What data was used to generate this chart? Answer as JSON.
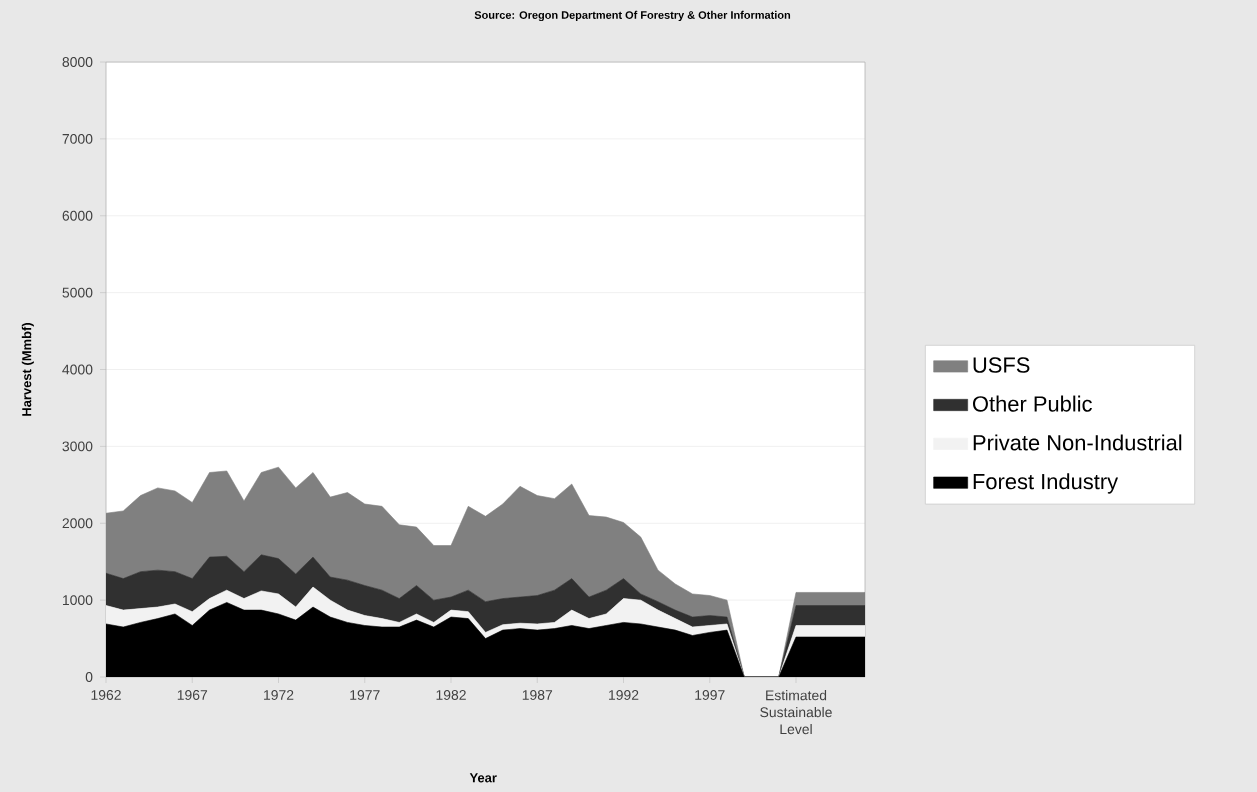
{
  "chart_data": {
    "type": "area",
    "stacked": true,
    "title": "Source: Oregon Department Of Forestry & Other Information",
    "xlabel": "Year",
    "ylabel": "Harvest (Mmbf)",
    "categories": [
      "1962",
      null,
      null,
      null,
      null,
      "1967",
      null,
      null,
      null,
      null,
      "1972",
      null,
      null,
      null,
      null,
      "1977",
      null,
      null,
      null,
      null,
      "1982",
      null,
      null,
      null,
      null,
      "1987",
      null,
      null,
      null,
      null,
      "1992",
      null,
      null,
      null,
      null,
      "1997",
      null,
      null,
      null,
      null,
      "Estimated Sustainable Level",
      null,
      null,
      null,
      null
    ],
    "series": [
      {
        "name": "Forest Industry",
        "color": "#000000",
        "values": [
          690,
          650,
          710,
          760,
          820,
          670,
          870,
          970,
          870,
          870,
          820,
          740,
          910,
          780,
          710,
          670,
          650,
          650,
          740,
          650,
          780,
          760,
          500,
          610,
          630,
          610,
          630,
          670,
          630,
          670,
          710,
          690,
          650,
          610,
          540,
          580,
          610,
          0,
          0,
          0,
          520,
          520,
          520,
          520,
          520
        ]
      },
      {
        "name": "Private Non-Industrial",
        "color": "#f2f2f2",
        "values": [
          240,
          220,
          180,
          150,
          130,
          180,
          150,
          160,
          150,
          250,
          260,
          170,
          260,
          220,
          160,
          130,
          110,
          60,
          80,
          60,
          90,
          90,
          80,
          70,
          70,
          80,
          80,
          200,
          130,
          150,
          310,
          310,
          220,
          150,
          110,
          90,
          80,
          0,
          0,
          0,
          150,
          150,
          150,
          150,
          150
        ]
      },
      {
        "name": "Other Public",
        "color": "#303030",
        "values": [
          420,
          410,
          480,
          480,
          420,
          430,
          540,
          440,
          350,
          470,
          460,
          430,
          390,
          300,
          390,
          390,
          370,
          310,
          370,
          290,
          170,
          280,
          400,
          340,
          340,
          370,
          420,
          410,
          280,
          310,
          260,
          80,
          110,
          110,
          130,
          130,
          90,
          0,
          0,
          0,
          260,
          260,
          260,
          260,
          260
        ]
      },
      {
        "name": "USFS",
        "color": "#808080",
        "values": [
          780,
          880,
          990,
          1070,
          1050,
          990,
          1100,
          1110,
          920,
          1070,
          1190,
          1120,
          1100,
          1040,
          1140,
          1060,
          1090,
          960,
          760,
          710,
          670,
          1090,
          1110,
          1230,
          1440,
          1300,
          1190,
          1230,
          1060,
          950,
          730,
          740,
          410,
          340,
          300,
          260,
          220,
          0,
          0,
          0,
          170,
          170,
          170,
          170,
          170
        ]
      }
    ],
    "ylim": [
      0,
      8000
    ],
    "yticks": [
      0,
      1000,
      2000,
      3000,
      4000,
      5000,
      6000,
      7000,
      8000
    ],
    "grid": "y",
    "legend": "right",
    "marker": "none"
  }
}
